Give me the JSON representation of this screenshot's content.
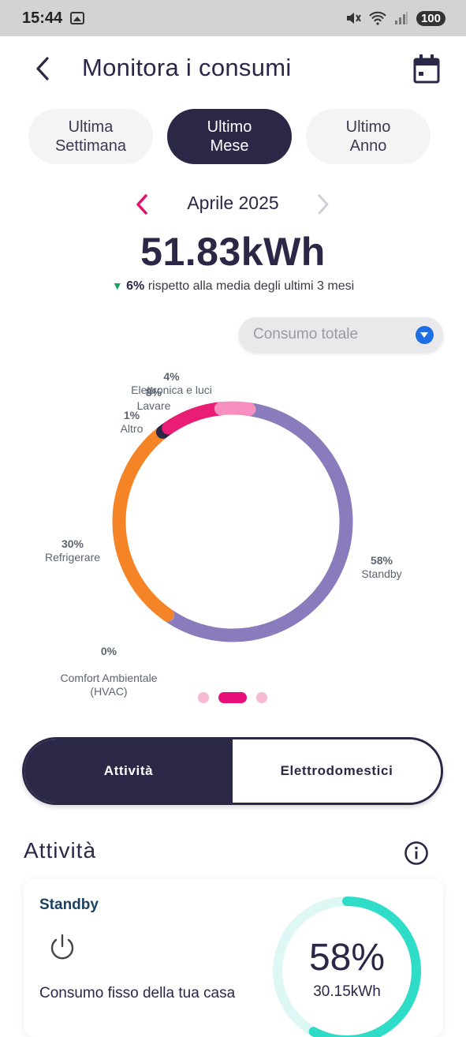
{
  "status_bar": {
    "time": "15:44",
    "battery": "100"
  },
  "header": {
    "title": "Monitora i consumi"
  },
  "range_tabs": [
    {
      "label": "Ultima\nSettimana",
      "active": false
    },
    {
      "label": "Ultimo\nMese",
      "active": true
    },
    {
      "label": "Ultimo\nAnno",
      "active": false
    }
  ],
  "period": {
    "label": "Aprile 2025"
  },
  "summary": {
    "total": "51.83kWh",
    "change_pct": "6%",
    "change_text": "rispetto alla media degli ultimi 3 mesi"
  },
  "dropdown": {
    "selected": "Consumo totale"
  },
  "chart_data": {
    "type": "pie",
    "categories": [
      "Standby",
      "Comfort Ambientale (HVAC)",
      "Refrigerare",
      "Altro",
      "Lavare",
      "Elettronica e luci"
    ],
    "values": [
      58,
      0,
      30,
      1,
      8,
      4
    ],
    "labels": [
      {
        "pct": "58%",
        "name": "Standby"
      },
      {
        "pct": "0%",
        "name": "Comfort Ambientale\n(HVAC)"
      },
      {
        "pct": "30%",
        "name": "Refrigerare"
      },
      {
        "pct": "1%",
        "name": "Altro"
      },
      {
        "pct": "8%",
        "name": "Lavare"
      },
      {
        "pct": "4%",
        "name": "Elettronica e luci"
      }
    ],
    "colors": [
      "#8a7bbd",
      "#a89fcc",
      "#f58426",
      "#2b2747",
      "#ea1d74",
      "#f78fc0"
    ]
  },
  "pager": {
    "pages": 3,
    "active": 1
  },
  "segmented": {
    "left": "Attività",
    "right": "Elettrodomestici",
    "active": "left"
  },
  "section": {
    "title": "Attività"
  },
  "card": {
    "title": "Standby",
    "description": "Consumo fisso della tua casa",
    "pct": "58%",
    "pct_value": 58,
    "kwh": "30.15kWh",
    "ring_color": "#2fdcc8",
    "ring_track": "#dcf7f4"
  },
  "icons": [
    "gallery-icon",
    "mute-icon",
    "wifi-icon",
    "signal-icon",
    "back-icon",
    "calendar-icon",
    "chevron-left-icon",
    "chevron-right-icon",
    "dropdown-arrow-icon",
    "info-icon",
    "power-icon"
  ]
}
